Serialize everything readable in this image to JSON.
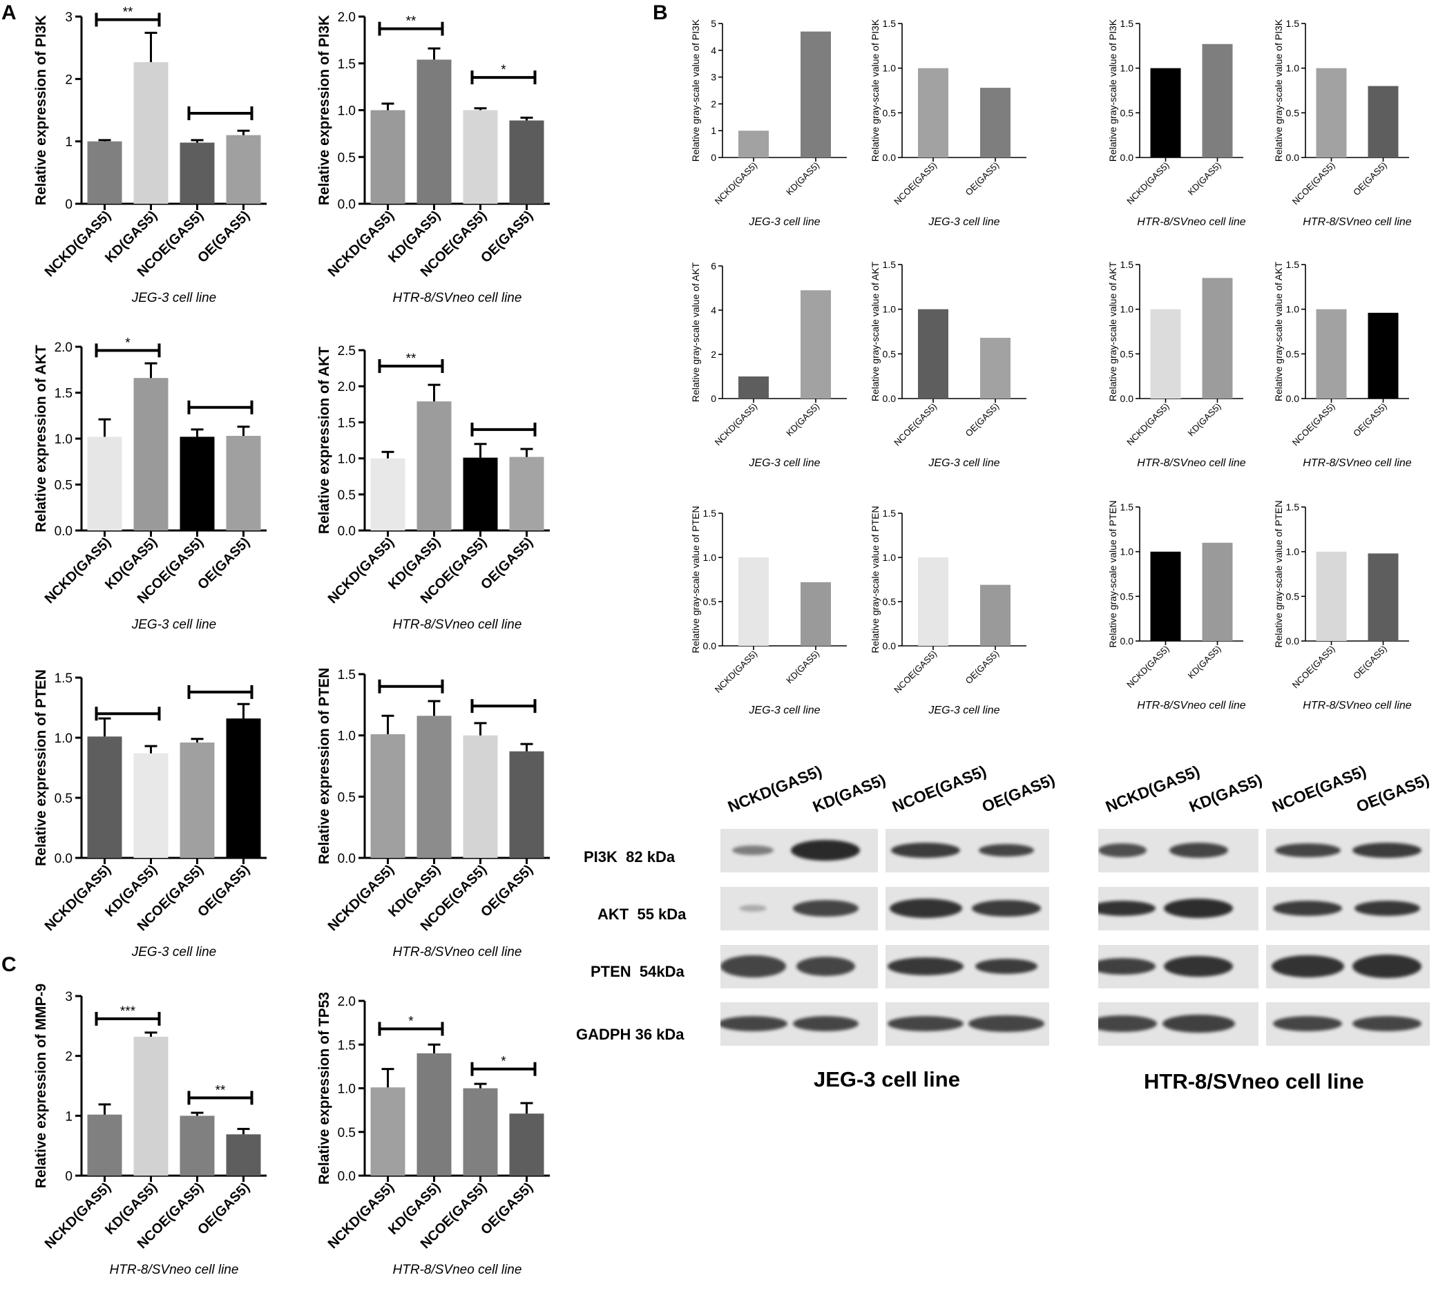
{
  "panels": {
    "A": "A",
    "B": "B",
    "C": "C"
  },
  "chart_data": [
    {
      "id": "A-pi3k-jeg3",
      "type": "bar",
      "categories": [
        "NCKD(GAS5)",
        "KD(GAS5)",
        "NCOE(GAS5)",
        "OE(GAS5)"
      ],
      "values": [
        1.0,
        2.27,
        0.98,
        1.1
      ],
      "errors": [
        0.02,
        0.47,
        0.04,
        0.07
      ],
      "colors": [
        "#808080",
        "#d2d2d2",
        "#5e5e5e",
        "#a0a0a0"
      ],
      "ylabel": "Relative expression of PI3K",
      "xlabel": "JEG-3 cell line",
      "ylim": [
        0,
        3
      ],
      "yticks": [
        "0",
        "1",
        "2",
        "3"
      ],
      "sig": [
        {
          "from": 0,
          "to": 1,
          "label": "**",
          "y": 2.95
        },
        {
          "from": 2,
          "to": 3,
          "label": "",
          "y": 1.45
        }
      ]
    },
    {
      "id": "A-pi3k-htr",
      "type": "bar",
      "categories": [
        "NCKD(GAS5)",
        "KD(GAS5)",
        "NCOE(GAS5)",
        "OE(GAS5)"
      ],
      "values": [
        1.0,
        1.54,
        1.0,
        0.89
      ],
      "errors": [
        0.07,
        0.12,
        0.02,
        0.03
      ],
      "colors": [
        "#9a9a9a",
        "#7c7c7c",
        "#d6d6d6",
        "#5c5c5c"
      ],
      "ylabel": "Relative expression of PI3K",
      "xlabel": "HTR-8/SVneo cell line",
      "ylim": [
        0,
        2.0
      ],
      "yticks": [
        "0.0",
        "0.5",
        "1.0",
        "1.5",
        "2.0"
      ],
      "sig": [
        {
          "from": 0,
          "to": 1,
          "label": "**",
          "y": 1.87
        },
        {
          "from": 2,
          "to": 3,
          "label": "*",
          "y": 1.35
        }
      ]
    },
    {
      "id": "A-akt-jeg3",
      "type": "bar",
      "categories": [
        "NCKD(GAS5)",
        "KD(GAS5)",
        "NCOE(GAS5)",
        "OE(GAS5)"
      ],
      "values": [
        1.02,
        1.66,
        1.02,
        1.03
      ],
      "errors": [
        0.19,
        0.16,
        0.08,
        0.1
      ],
      "colors": [
        "#e6e6e6",
        "#9a9a9a",
        "#000000",
        "#a0a0a0"
      ],
      "ylabel": "Relative expression of AKT",
      "xlabel": "JEG-3 cell line",
      "ylim": [
        0,
        2.0
      ],
      "yticks": [
        "0.0",
        "0.5",
        "1.0",
        "1.5",
        "2.0"
      ],
      "sig": [
        {
          "from": 0,
          "to": 1,
          "label": "*",
          "y": 1.96
        },
        {
          "from": 2,
          "to": 3,
          "label": "",
          "y": 1.34
        }
      ]
    },
    {
      "id": "A-akt-htr",
      "type": "bar",
      "categories": [
        "NCKD(GAS5)",
        "KD(GAS5)",
        "NCOE(GAS5)",
        "OE(GAS5)"
      ],
      "values": [
        1.0,
        1.79,
        1.01,
        1.02
      ],
      "errors": [
        0.09,
        0.23,
        0.19,
        0.11
      ],
      "colors": [
        "#e8e8e8",
        "#9c9c9c",
        "#000000",
        "#a4a4a4"
      ],
      "ylabel": "Relative expression of AKT",
      "xlabel": "HTR-8/SVneo cell line",
      "ylim": [
        0,
        2.5
      ],
      "yticks": [
        "0.0",
        "0.5",
        "1.0",
        "1.5",
        "2.0",
        "2.5"
      ],
      "sig": [
        {
          "from": 0,
          "to": 1,
          "label": "**",
          "y": 2.28
        },
        {
          "from": 2,
          "to": 3,
          "label": "",
          "y": 1.4
        }
      ]
    },
    {
      "id": "A-pten-jeg3",
      "type": "bar",
      "categories": [
        "NCKD(GAS5)",
        "KD(GAS5)",
        "NCOE(GAS5)",
        "OE(GAS5)"
      ],
      "values": [
        1.01,
        0.87,
        0.96,
        1.16
      ],
      "errors": [
        0.15,
        0.06,
        0.03,
        0.12
      ],
      "colors": [
        "#5e5e5e",
        "#e8e8e8",
        "#a0a0a0",
        "#000000"
      ],
      "ylabel": "Relative expression of PTEN",
      "xlabel": "JEG-3 cell line",
      "ylim": [
        0,
        1.5
      ],
      "yticks": [
        "0.0",
        "0.5",
        "1.0",
        "1.5"
      ],
      "sig": [
        {
          "from": 0,
          "to": 1,
          "label": "",
          "y": 1.2
        },
        {
          "from": 2,
          "to": 3,
          "label": "",
          "y": 1.38
        }
      ]
    },
    {
      "id": "A-pten-htr",
      "type": "bar",
      "categories": [
        "NCKD(GAS5)",
        "KD(GAS5)",
        "NCOE(GAS5)",
        "OE(GAS5)"
      ],
      "values": [
        1.01,
        1.16,
        1.0,
        0.87
      ],
      "errors": [
        0.15,
        0.12,
        0.1,
        0.06
      ],
      "colors": [
        "#a0a0a0",
        "#8c8c8c",
        "#d4d4d4",
        "#5c5c5c"
      ],
      "ylabel": "Relative expression of PTEN",
      "xlabel": "HTR-8/SVneo cell line",
      "ylim": [
        0,
        1.5
      ],
      "yticks": [
        "0.0",
        "0.5",
        "1.0",
        "1.5"
      ],
      "sig": [
        {
          "from": 0,
          "to": 1,
          "label": "",
          "y": 1.4
        },
        {
          "from": 2,
          "to": 3,
          "label": "",
          "y": 1.24
        }
      ]
    },
    {
      "id": "B-pi3k-jeg3-kd",
      "type": "bar",
      "categories": [
        "NCKD(GAS5)",
        "KD(GAS5)"
      ],
      "values": [
        1.0,
        4.7
      ],
      "colors": [
        "#a2a2a2",
        "#7e7e7e"
      ],
      "ylabel": "Relative gray-scale value of PI3K",
      "xlabel": "JEG-3 cell line",
      "ylim": [
        0,
        5
      ],
      "yticks": [
        "0",
        "1",
        "2",
        "3",
        "4",
        "5"
      ]
    },
    {
      "id": "B-pi3k-jeg3-oe",
      "type": "bar",
      "categories": [
        "NCOE(GAS5)",
        "OE(GAS5)"
      ],
      "values": [
        1.0,
        0.78
      ],
      "colors": [
        "#a2a2a2",
        "#7e7e7e"
      ],
      "ylabel": "Relative gray-scale value of PI3K",
      "xlabel": "JEG-3 cell line",
      "ylim": [
        0,
        1.5
      ],
      "yticks": [
        "0.0",
        "0.5",
        "1.0",
        "1.5"
      ]
    },
    {
      "id": "B-pi3k-htr-kd",
      "type": "bar",
      "categories": [
        "NCKD(GAS5)",
        "KD(GAS5)"
      ],
      "values": [
        1.0,
        1.27
      ],
      "colors": [
        "#000000",
        "#7e7e7e"
      ],
      "ylabel": "Relative gray-scale value of PI3K",
      "xlabel": "HTR-8/SVneo cell line",
      "ylim": [
        0,
        1.5
      ],
      "yticks": [
        "0.0",
        "0.5",
        "1.0",
        "1.5"
      ]
    },
    {
      "id": "B-pi3k-htr-oe",
      "type": "bar",
      "categories": [
        "NCOE(GAS5)",
        "OE(GAS5)"
      ],
      "values": [
        1.0,
        0.8
      ],
      "colors": [
        "#a2a2a2",
        "#5e5e5e"
      ],
      "ylabel": "Relative gray-scale value of PI3K",
      "xlabel": "HTR-8/SVneo cell line",
      "ylim": [
        0,
        1.5
      ],
      "yticks": [
        "0.0",
        "0.5",
        "1.0",
        "1.5"
      ]
    },
    {
      "id": "B-akt-jeg3-kd",
      "type": "bar",
      "categories": [
        "NCKD(GAS5)",
        "KD(GAS5)"
      ],
      "values": [
        1.0,
        4.9
      ],
      "colors": [
        "#5e5e5e",
        "#a2a2a2"
      ],
      "ylabel": "Relative gray-scale value of AKT",
      "xlabel": "JEG-3 cell line",
      "ylim": [
        0,
        6
      ],
      "yticks": [
        "0",
        "2",
        "4",
        "6"
      ]
    },
    {
      "id": "B-akt-jeg3-oe",
      "type": "bar",
      "categories": [
        "NCOE(GAS5)",
        "OE(GAS5)"
      ],
      "values": [
        1.0,
        0.68
      ],
      "colors": [
        "#5e5e5e",
        "#a2a2a2"
      ],
      "ylabel": "Relative gray-scale value of AKT",
      "xlabel": "JEG-3 cell line",
      "ylim": [
        0,
        1.5
      ],
      "yticks": [
        "0.0",
        "0.5",
        "1.0",
        "1.5"
      ]
    },
    {
      "id": "B-akt-htr-kd",
      "type": "bar",
      "categories": [
        "NCKD(GAS5)",
        "KD(GAS5)"
      ],
      "values": [
        1.0,
        1.35
      ],
      "colors": [
        "#dcdcdc",
        "#9c9c9c"
      ],
      "ylabel": "Relative gray-scale value of AKT",
      "xlabel": "HTR-8/SVneo cell line",
      "ylim": [
        0,
        1.5
      ],
      "yticks": [
        "0.0",
        "0.5",
        "1.0",
        "1.5"
      ]
    },
    {
      "id": "B-akt-htr-oe",
      "type": "bar",
      "categories": [
        "NCOE(GAS5)",
        "OE(GAS5)"
      ],
      "values": [
        1.0,
        0.96
      ],
      "colors": [
        "#a2a2a2",
        "#000000"
      ],
      "ylabel": "Relative gray-scale value of AKT",
      "xlabel": "HTR-8/SVneo cell line",
      "ylim": [
        0,
        1.5
      ],
      "yticks": [
        "0.0",
        "0.5",
        "1.0",
        "1.5"
      ]
    },
    {
      "id": "B-pten-jeg3-kd",
      "type": "bar",
      "categories": [
        "NCKD(GAS5)",
        "KD(GAS5)"
      ],
      "values": [
        1.0,
        0.72
      ],
      "colors": [
        "#e6e6e6",
        "#9a9a9a"
      ],
      "ylabel": "Relative gray-scale value of PTEN",
      "xlabel": "JEG-3 cell line",
      "ylim": [
        0,
        1.5
      ],
      "yticks": [
        "0.0",
        "0.5",
        "1.0",
        "1.5"
      ]
    },
    {
      "id": "B-pten-jeg3-oe",
      "type": "bar",
      "categories": [
        "NCOE(GAS5)",
        "OE(GAS5)"
      ],
      "values": [
        1.0,
        0.69
      ],
      "colors": [
        "#e6e6e6",
        "#9a9a9a"
      ],
      "ylabel": "Relative gray-scale value of PTEN",
      "xlabel": "JEG-3 cell line",
      "ylim": [
        0,
        1.5
      ],
      "yticks": [
        "0.0",
        "0.5",
        "1.0",
        "1.5"
      ]
    },
    {
      "id": "B-pten-htr-kd",
      "type": "bar",
      "categories": [
        "NCKD(GAS5)",
        "KD(GAS5)"
      ],
      "values": [
        1.0,
        1.1
      ],
      "colors": [
        "#000000",
        "#9a9a9a"
      ],
      "ylabel": "Relative gray-scale value of PTEN",
      "xlabel": "HTR-8/SVneo cell line",
      "ylim": [
        0,
        1.5
      ],
      "yticks": [
        "0.0",
        "0.5",
        "1.0",
        "1.5"
      ]
    },
    {
      "id": "B-pten-htr-oe",
      "type": "bar",
      "categories": [
        "NCOE(GAS5)",
        "OE(GAS5)"
      ],
      "values": [
        1.0,
        0.98
      ],
      "colors": [
        "#d8d8d8",
        "#5e5e5e"
      ],
      "ylabel": "Relative gray-scale value of PTEN",
      "xlabel": "HTR-8/SVneo cell line",
      "ylim": [
        0,
        1.5
      ],
      "yticks": [
        "0.0",
        "0.5",
        "1.0",
        "1.5"
      ]
    },
    {
      "id": "C-mmp9-htr",
      "type": "bar",
      "categories": [
        "NCKD(GAS5)",
        "KD(GAS5)",
        "NCOE(GAS5)",
        "OE(GAS5)"
      ],
      "values": [
        1.02,
        2.32,
        1.0,
        0.69
      ],
      "errors": [
        0.17,
        0.07,
        0.05,
        0.09
      ],
      "colors": [
        "#808080",
        "#d2d2d2",
        "#808080",
        "#5e5e5e"
      ],
      "ylabel": "Relative expression of MMP-9",
      "xlabel": "HTR-8/SVneo cell line",
      "ylim": [
        0,
        3
      ],
      "yticks": [
        "0",
        "1",
        "2",
        "3"
      ],
      "sig": [
        {
          "from": 0,
          "to": 1,
          "label": "***",
          "y": 2.62
        },
        {
          "from": 2,
          "to": 3,
          "label": "**",
          "y": 1.3
        }
      ]
    },
    {
      "id": "C-tp53-htr",
      "type": "bar",
      "categories": [
        "NCKD(GAS5)",
        "KD(GAS5)",
        "NCOE(GAS5)",
        "OE(GAS5)"
      ],
      "values": [
        1.01,
        1.4,
        1.0,
        0.71
      ],
      "errors": [
        0.21,
        0.1,
        0.05,
        0.12
      ],
      "colors": [
        "#a0a0a0",
        "#7c7c7c",
        "#808080",
        "#5e5e5e"
      ],
      "ylabel": "Relative expression of TP53",
      "xlabel": "HTR-8/SVneo cell line",
      "ylim": [
        0,
        2.0
      ],
      "yticks": [
        "0.0",
        "0.5",
        "1.0",
        "1.5",
        "2.0"
      ],
      "sig": [
        {
          "from": 0,
          "to": 1,
          "label": "*",
          "y": 1.68
        },
        {
          "from": 2,
          "to": 3,
          "label": "*",
          "y": 1.22
        }
      ]
    }
  ],
  "western_blot": {
    "proteins": [
      {
        "name": "PI3K",
        "kda": "82 kDa"
      },
      {
        "name": "AKT",
        "kda": "55 kDa"
      },
      {
        "name": "PTEN",
        "kda": "54kDa"
      },
      {
        "name": "GADPH",
        "kda": "36 kDa"
      }
    ],
    "lanes": [
      "NCKD(GAS5)",
      "KD(GAS5)",
      "NCOE(GAS5)",
      "OE(GAS5)"
    ],
    "jeg3_title": "JEG-3 cell line",
    "htr_title": "HTR-8/SVneo cell line"
  }
}
